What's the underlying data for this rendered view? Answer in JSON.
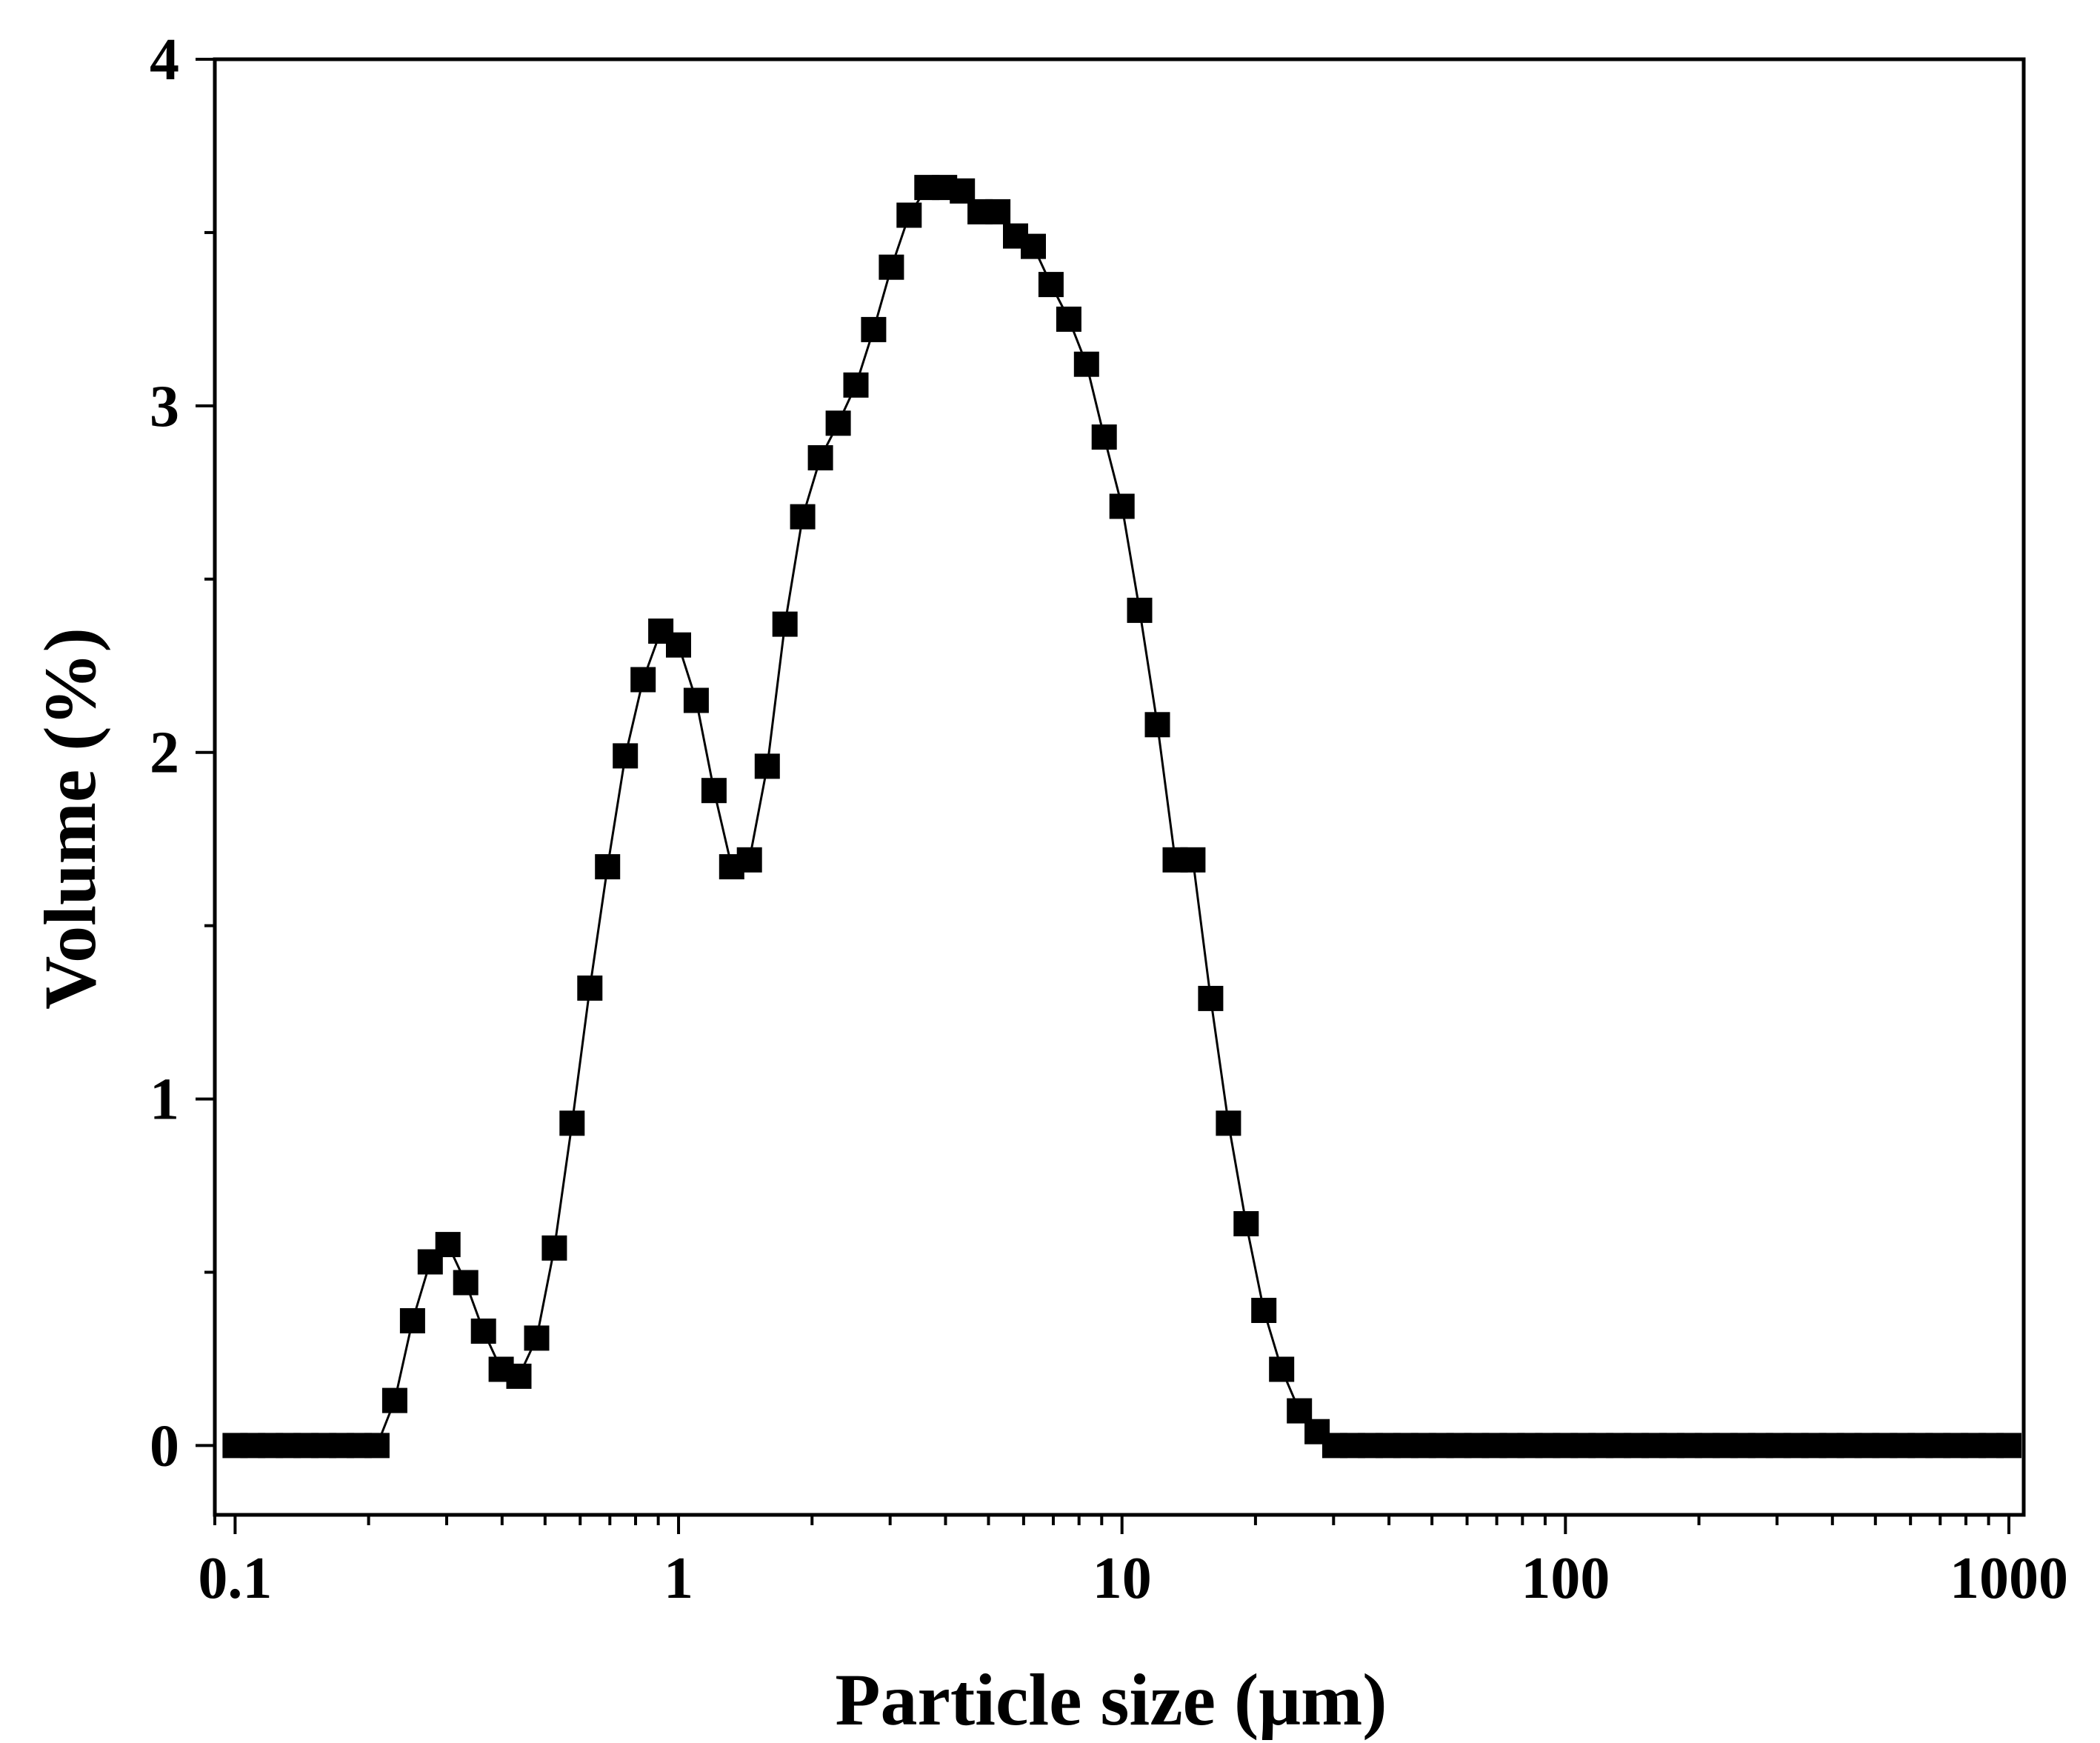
{
  "chart_data": {
    "type": "line",
    "marker": "square",
    "xscale": "log",
    "xlabel": "Particle size (μm)",
    "ylabel": "Volume (%)",
    "xlim": [
      0.09,
      1080
    ],
    "ylim": [
      -0.2,
      4
    ],
    "x_ticks": [
      0.1,
      1,
      10,
      100,
      1000
    ],
    "x_tick_labels": [
      "0.1",
      "1",
      "10",
      "100",
      "1000"
    ],
    "y_ticks": [
      0,
      1,
      2,
      3,
      4
    ],
    "y_tick_labels": [
      "0",
      "1",
      "2",
      "3",
      "4"
    ],
    "colors": {
      "line": "#000000",
      "marker": "#000000",
      "axis": "#000000"
    },
    "series": [
      {
        "name": "Volume",
        "x": [
          0.1,
          0.1096,
          0.1202,
          0.1318,
          0.1445,
          0.1585,
          0.1738,
          0.1905,
          0.2089,
          0.2291,
          0.2512,
          0.2754,
          0.302,
          0.3311,
          0.3631,
          0.3981,
          0.4365,
          0.4786,
          0.5248,
          0.5754,
          0.631,
          0.6918,
          0.7586,
          0.8318,
          0.912,
          1.0,
          1.096,
          1.202,
          1.318,
          1.445,
          1.585,
          1.738,
          1.905,
          2.089,
          2.291,
          2.512,
          2.754,
          3.02,
          3.311,
          3.631,
          3.981,
          4.365,
          4.786,
          5.248,
          5.754,
          6.31,
          6.918,
          7.586,
          8.318,
          9.12,
          10.0,
          10.96,
          12.02,
          13.18,
          14.45,
          15.85,
          17.38,
          19.05,
          20.89,
          22.91,
          25.12,
          27.54,
          30.2,
          33.11,
          36.31,
          39.81,
          43.65,
          47.86,
          52.48,
          57.54,
          63.1,
          69.18,
          75.86,
          83.18,
          91.2,
          100.0,
          109.6,
          120.2,
          131.8,
          144.5,
          158.5,
          173.8,
          190.5,
          208.9,
          229.1,
          251.2,
          275.4,
          302.0,
          331.1,
          363.1,
          398.1,
          436.5,
          478.6,
          524.8,
          575.4,
          631.0,
          691.8,
          758.6,
          831.8,
          912.0,
          1000.0
        ],
        "values": [
          0,
          0,
          0,
          0,
          0,
          0,
          0,
          0,
          0,
          0.13,
          0.36,
          0.53,
          0.58,
          0.47,
          0.33,
          0.22,
          0.2,
          0.31,
          0.57,
          0.93,
          1.32,
          1.67,
          1.99,
          2.21,
          2.35,
          2.31,
          2.15,
          1.89,
          1.67,
          1.69,
          1.96,
          2.37,
          2.68,
          2.85,
          2.95,
          3.06,
          3.22,
          3.4,
          3.55,
          3.63,
          3.63,
          3.62,
          3.56,
          3.56,
          3.49,
          3.46,
          3.35,
          3.25,
          3.12,
          2.91,
          2.71,
          2.41,
          2.08,
          1.69,
          1.69,
          1.29,
          0.93,
          0.64,
          0.39,
          0.22,
          0.1,
          0.04,
          0,
          0,
          0,
          0,
          0,
          0,
          0,
          0,
          0,
          0,
          0,
          0,
          0,
          0,
          0,
          0,
          0,
          0,
          0,
          0,
          0,
          0,
          0,
          0,
          0,
          0,
          0,
          0,
          0,
          0,
          0,
          0,
          0,
          0,
          0,
          0,
          0,
          0,
          0
        ]
      }
    ]
  }
}
